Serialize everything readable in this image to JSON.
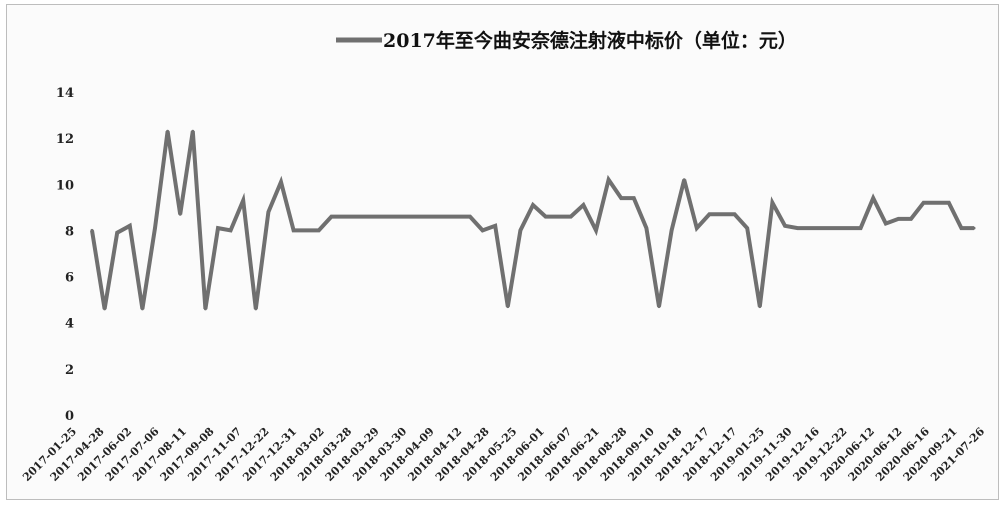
{
  "chart_data": {
    "type": "line",
    "title": "",
    "xlabel": "",
    "ylabel": "",
    "ylim": [
      0,
      14
    ],
    "yticks": [
      0,
      2,
      4,
      6,
      8,
      10,
      12,
      14
    ],
    "grid": false,
    "legend_position": "top-center",
    "series_color": "#707070",
    "x_tick_labels": [
      "2017-01-25",
      "2017-04-28",
      "2017-06-02",
      "2017-07-06",
      "2017-08-11",
      "2017-09-08",
      "2017-11-07",
      "2017-12-22",
      "2017-12-31",
      "2018-03-02",
      "2018-03-28",
      "2018-03-29",
      "2018-03-30",
      "2018-04-09",
      "2018-04-12",
      "2018-04-28",
      "2018-05-25",
      "2018-06-01",
      "2018-06-07",
      "2018-06-21",
      "2018-08-28",
      "2018-09-10",
      "2018-10-18",
      "2018-12-17",
      "2018-12-17",
      "2019-01-25",
      "2019-11-30",
      "2019-12-16",
      "2019-12-22",
      "2020-06-12",
      "2020-06-12",
      "2020-06-16",
      "2020-09-21",
      "2021-07-26"
    ],
    "series": [
      {
        "name": "2017年至今曲安奈德注射液中标价（单位：元）",
        "values": [
          8.0,
          4.6,
          7.9,
          8.2,
          4.6,
          8.1,
          12.3,
          8.7,
          12.3,
          4.6,
          8.1,
          8.0,
          9.3,
          4.6,
          8.8,
          10.1,
          8.0,
          8.0,
          8.0,
          8.6,
          8.6,
          8.6,
          8.6,
          8.6,
          8.6,
          8.6,
          8.6,
          8.6,
          8.6,
          8.6,
          8.6,
          8.0,
          8.2,
          4.7,
          8.0,
          9.1,
          8.6,
          8.6,
          8.6,
          9.1,
          8.0,
          10.2,
          9.4,
          9.4,
          8.1,
          4.7,
          8.0,
          10.2,
          8.1,
          8.7,
          8.7,
          8.7,
          8.1,
          4.7,
          9.2,
          8.2,
          8.1,
          8.1,
          8.1,
          8.1,
          8.1,
          8.1,
          9.4,
          8.3,
          8.5,
          8.5,
          9.2,
          9.2,
          9.2,
          8.1,
          8.1
        ]
      }
    ]
  }
}
